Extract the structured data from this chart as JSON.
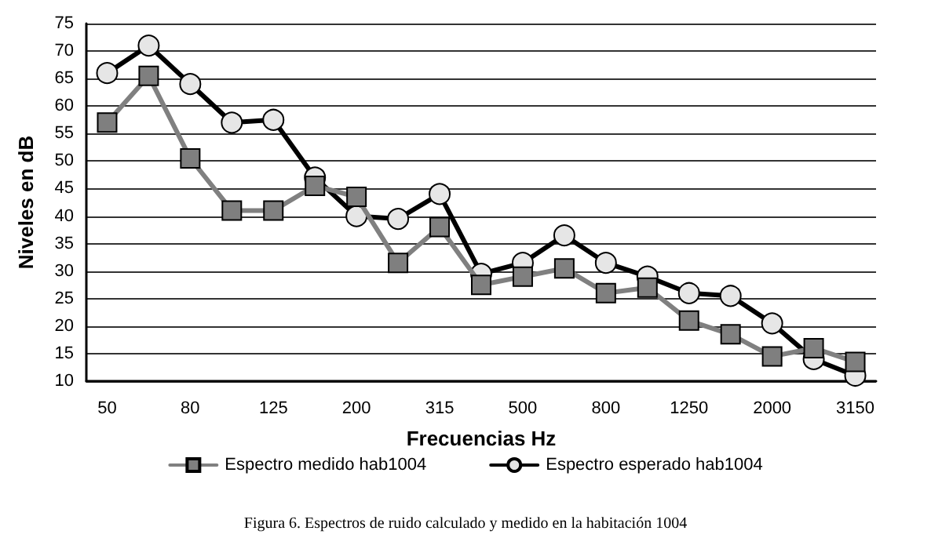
{
  "chart_data": {
    "type": "line",
    "xlabel": "Frecuencias Hz",
    "ylabel": "Niveles en dB",
    "categories": [
      "50",
      null,
      "80",
      null,
      "125",
      null,
      "200",
      null,
      "315",
      null,
      "500",
      null,
      "800",
      null,
      "1250",
      null,
      "2000",
      null,
      "3150"
    ],
    "series": [
      {
        "name": "Espectro medido hab1004",
        "color": "#808080",
        "marker": "square",
        "values": [
          57,
          65.5,
          50.5,
          41,
          41,
          45.5,
          43.5,
          31.5,
          38,
          27.5,
          29,
          30.5,
          26,
          27,
          21,
          18.5,
          14.5,
          16,
          13.5
        ]
      },
      {
        "name": "Espectro esperado hab1004",
        "color": "#000000",
        "marker": "circle",
        "values": [
          66,
          71,
          64,
          57,
          57.5,
          47,
          40,
          39.5,
          44,
          29.5,
          31.5,
          36.5,
          31.5,
          29,
          26,
          25.5,
          20.5,
          14,
          11
        ]
      }
    ],
    "ylim": [
      10,
      75
    ],
    "yticks": [
      10,
      15,
      20,
      25,
      30,
      35,
      40,
      45,
      50,
      55,
      60,
      65,
      70,
      75
    ],
    "grid": "y",
    "legend": "bottom",
    "line_style": "solid",
    "annotations": [
      "Figura 6. Espectros de ruido calculado y medido en la habitación 1004"
    ]
  }
}
